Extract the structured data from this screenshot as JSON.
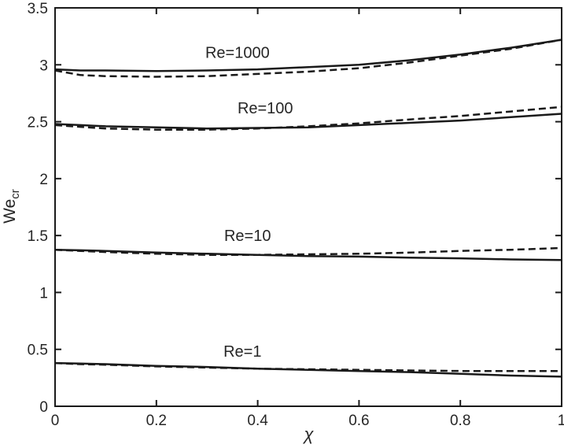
{
  "figure": {
    "background": "#ffffff",
    "line_color": "#1a1a1a",
    "text_color": "#262626"
  },
  "chart_data": {
    "type": "line",
    "title": "",
    "xlabel": "χ",
    "ylabel": "We_cr",
    "ylabel_base": "We",
    "ylabel_sub": "cr",
    "xlim": [
      0,
      1
    ],
    "ylim": [
      0,
      3.5
    ],
    "grid": false,
    "legend_position": "none (inline curve annotations)",
    "x_ticks": [
      0,
      0.2,
      0.4,
      0.6,
      0.8,
      1
    ],
    "x_tick_labels": [
      "0",
      "0.2",
      "0.4",
      "0.6",
      "0.8",
      "1"
    ],
    "y_ticks": [
      0,
      0.5,
      1,
      1.5,
      2,
      2.5,
      3,
      3.5
    ],
    "y_tick_labels": [
      "0",
      "0.5",
      "1",
      "1.5",
      "2",
      "2.5",
      "3",
      "3.5"
    ],
    "x": [
      0,
      0.05,
      0.1,
      0.2,
      0.3,
      0.4,
      0.5,
      0.6,
      0.7,
      0.8,
      0.9,
      1
    ],
    "series": [
      {
        "name": "Re=1000 solid",
        "group": "Re=1000",
        "style": "solid",
        "values": [
          2.96,
          2.95,
          2.95,
          2.945,
          2.95,
          2.96,
          2.98,
          3.0,
          3.04,
          3.09,
          3.15,
          3.22
        ]
      },
      {
        "name": "Re=1000 dashed",
        "group": "Re=1000",
        "style": "dashed",
        "values": [
          2.95,
          2.91,
          2.9,
          2.895,
          2.9,
          2.92,
          2.94,
          2.97,
          3.02,
          3.08,
          3.14,
          3.22
        ]
      },
      {
        "name": "Re=100 solid",
        "group": "Re=100",
        "style": "solid",
        "values": [
          2.48,
          2.47,
          2.46,
          2.45,
          2.44,
          2.445,
          2.45,
          2.47,
          2.49,
          2.51,
          2.54,
          2.57
        ]
      },
      {
        "name": "Re=100 dashed",
        "group": "Re=100",
        "style": "dashed",
        "values": [
          2.47,
          2.455,
          2.44,
          2.43,
          2.43,
          2.44,
          2.46,
          2.485,
          2.52,
          2.55,
          2.59,
          2.63
        ]
      },
      {
        "name": "Re=10 solid",
        "group": "Re=10",
        "style": "solid",
        "values": [
          1.375,
          1.37,
          1.365,
          1.35,
          1.34,
          1.33,
          1.32,
          1.315,
          1.305,
          1.3,
          1.29,
          1.285
        ]
      },
      {
        "name": "Re=10 dashed",
        "group": "Re=10",
        "style": "dashed",
        "values": [
          1.375,
          1.365,
          1.355,
          1.34,
          1.33,
          1.33,
          1.335,
          1.34,
          1.35,
          1.365,
          1.375,
          1.39
        ]
      },
      {
        "name": "Re=1 solid",
        "group": "Re=1",
        "style": "solid",
        "values": [
          0.38,
          0.375,
          0.37,
          0.355,
          0.345,
          0.33,
          0.32,
          0.31,
          0.3,
          0.285,
          0.27,
          0.26
        ]
      },
      {
        "name": "Re=1 dashed",
        "group": "Re=1",
        "style": "dashed",
        "values": [
          0.38,
          0.37,
          0.365,
          0.35,
          0.34,
          0.33,
          0.325,
          0.32,
          0.315,
          0.31,
          0.31,
          0.31
        ]
      }
    ],
    "annotations": [
      {
        "label": "Re=1000",
        "x": 0.36,
        "y": 3.11
      },
      {
        "label": "Re=100",
        "x": 0.415,
        "y": 2.62
      },
      {
        "label": "Re=10",
        "x": 0.38,
        "y": 1.5
      },
      {
        "label": "Re=1",
        "x": 0.37,
        "y": 0.485
      }
    ]
  }
}
